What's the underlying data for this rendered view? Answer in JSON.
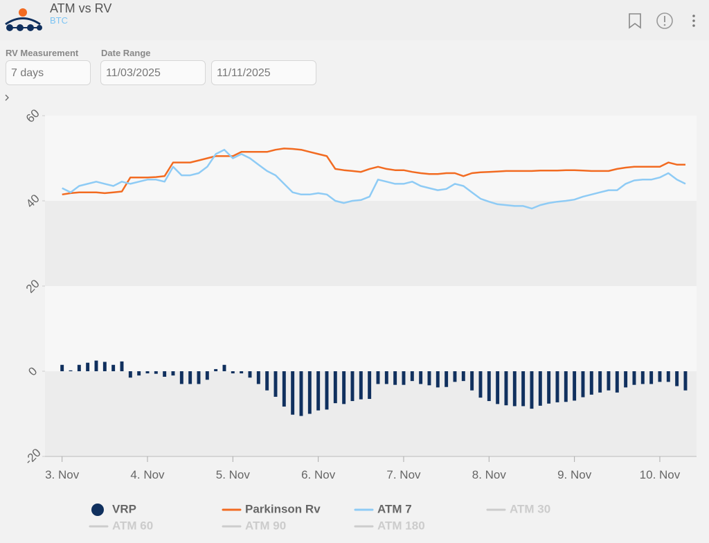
{
  "header": {
    "title": "ATM vs RV",
    "subtitle": "BTC"
  },
  "controls": {
    "rv_label": "RV Measurement",
    "rv_value": "7 days",
    "date_label": "Date Range",
    "date_from": "11/03/2025",
    "date_to": "11/11/2025"
  },
  "chart_data": {
    "type": "bar-line",
    "x": [
      3,
      3.1,
      3.2,
      3.3,
      3.4,
      3.5,
      3.6,
      3.7,
      3.8,
      3.9,
      4,
      4.1,
      4.2,
      4.3,
      4.4,
      4.5,
      4.6,
      4.7,
      4.8,
      4.9,
      5,
      5.1,
      5.2,
      5.3,
      5.4,
      5.5,
      5.6,
      5.7,
      5.8,
      5.9,
      6,
      6.1,
      6.2,
      6.3,
      6.4,
      6.5,
      6.6,
      6.7,
      6.8,
      6.9,
      7,
      7.1,
      7.2,
      7.3,
      7.4,
      7.5,
      7.6,
      7.7,
      7.8,
      7.9,
      8,
      8.1,
      8.2,
      8.3,
      8.4,
      8.5,
      8.6,
      8.7,
      8.8,
      8.9,
      9,
      9.1,
      9.2,
      9.3,
      9.4,
      9.5,
      9.6,
      9.7,
      9.8,
      9.9,
      10,
      10.1,
      10.2,
      10.3
    ],
    "series": [
      {
        "name": "VRP",
        "kind": "bar",
        "color": "#10305e",
        "values": [
          1.5,
          0.2,
          1.5,
          2,
          2.5,
          2.2,
          1.5,
          2.3,
          -1.5,
          -1,
          -0.5,
          -0.6,
          -1.3,
          -1,
          -3,
          -3,
          -3,
          -2,
          0.5,
          1.5,
          -0.5,
          -0.5,
          -1.5,
          -3,
          -4.5,
          -6,
          -8.3,
          -10.2,
          -10.5,
          -10,
          -9.2,
          -9,
          -7.5,
          -7.7,
          -7,
          -6.6,
          -6.5,
          -3,
          -3,
          -3.2,
          -3.2,
          -2.3,
          -3,
          -3.3,
          -3.8,
          -3.7,
          -2.5,
          -2.3,
          -4.5,
          -6.2,
          -7,
          -7.7,
          -8,
          -8.2,
          -8.2,
          -8.8,
          -8.1,
          -7.6,
          -7.3,
          -7.2,
          -6.9,
          -6.1,
          -5.5,
          -5,
          -4.5,
          -5,
          -3.8,
          -3.2,
          -3,
          -3,
          -2.5,
          -2.5,
          -3.5,
          -4.5
        ]
      },
      {
        "name": "Parkinson Rv",
        "kind": "line",
        "color": "#f26b21",
        "values": [
          41.5,
          41.8,
          42,
          42,
          42,
          41.8,
          42,
          42.2,
          45.5,
          45.5,
          45.5,
          45.6,
          45.8,
          49,
          49,
          49,
          49.5,
          50,
          50.5,
          50.5,
          50.5,
          51.5,
          51.5,
          51.5,
          51.5,
          52,
          52.3,
          52.2,
          52,
          51.5,
          51,
          50.5,
          47.5,
          47.2,
          47,
          46.8,
          47.5,
          48,
          47.5,
          47.2,
          47.2,
          46.8,
          46.5,
          46.3,
          46.3,
          46.5,
          46.5,
          45.8,
          46.5,
          46.7,
          46.8,
          46.9,
          47,
          47,
          47,
          47,
          47.1,
          47.1,
          47.1,
          47.2,
          47.2,
          47.1,
          47,
          47,
          47,
          47.5,
          47.8,
          48,
          48,
          48,
          48,
          49,
          48.5,
          48.5
        ]
      },
      {
        "name": "ATM 7",
        "kind": "line",
        "color": "#8ecbf5",
        "values": [
          43,
          42,
          43.5,
          44,
          44.5,
          44,
          43.5,
          44.5,
          44,
          44.5,
          45,
          45,
          44.5,
          48,
          46,
          46,
          46.5,
          48,
          51,
          52,
          50,
          51,
          50,
          48.5,
          47,
          46,
          44,
          42,
          41.5,
          41.5,
          41.8,
          41.5,
          40,
          39.5,
          40,
          40.2,
          41,
          45,
          44.5,
          44,
          44,
          44.5,
          43.5,
          43,
          42.5,
          42.8,
          44,
          43.5,
          42,
          40.5,
          39.8,
          39.2,
          39,
          38.8,
          38.8,
          38.2,
          39,
          39.5,
          39.8,
          40,
          40.3,
          41,
          41.5,
          42,
          42.5,
          42.5,
          44,
          44.8,
          45,
          45,
          45.5,
          46.5,
          45,
          44
        ]
      }
    ],
    "inactive_series": [
      "ATM 30",
      "ATM 60",
      "ATM 90",
      "ATM 180"
    ],
    "inactive_color": "#cccccc",
    "xlim": [
      2.8,
      10.43
    ],
    "xticks": [
      {
        "value": 3,
        "label": "3. Nov"
      },
      {
        "value": 4,
        "label": "4. Nov"
      },
      {
        "value": 5,
        "label": "5. Nov"
      },
      {
        "value": 6,
        "label": "6. Nov"
      },
      {
        "value": 7,
        "label": "7. Nov"
      },
      {
        "value": 8,
        "label": "8. Nov"
      },
      {
        "value": 9,
        "label": "9. Nov"
      },
      {
        "value": 10,
        "label": "10. Nov"
      }
    ],
    "ylim": [
      -20,
      60
    ],
    "yticks": [
      -20,
      0,
      20,
      40,
      60
    ],
    "plot_bands": true
  }
}
